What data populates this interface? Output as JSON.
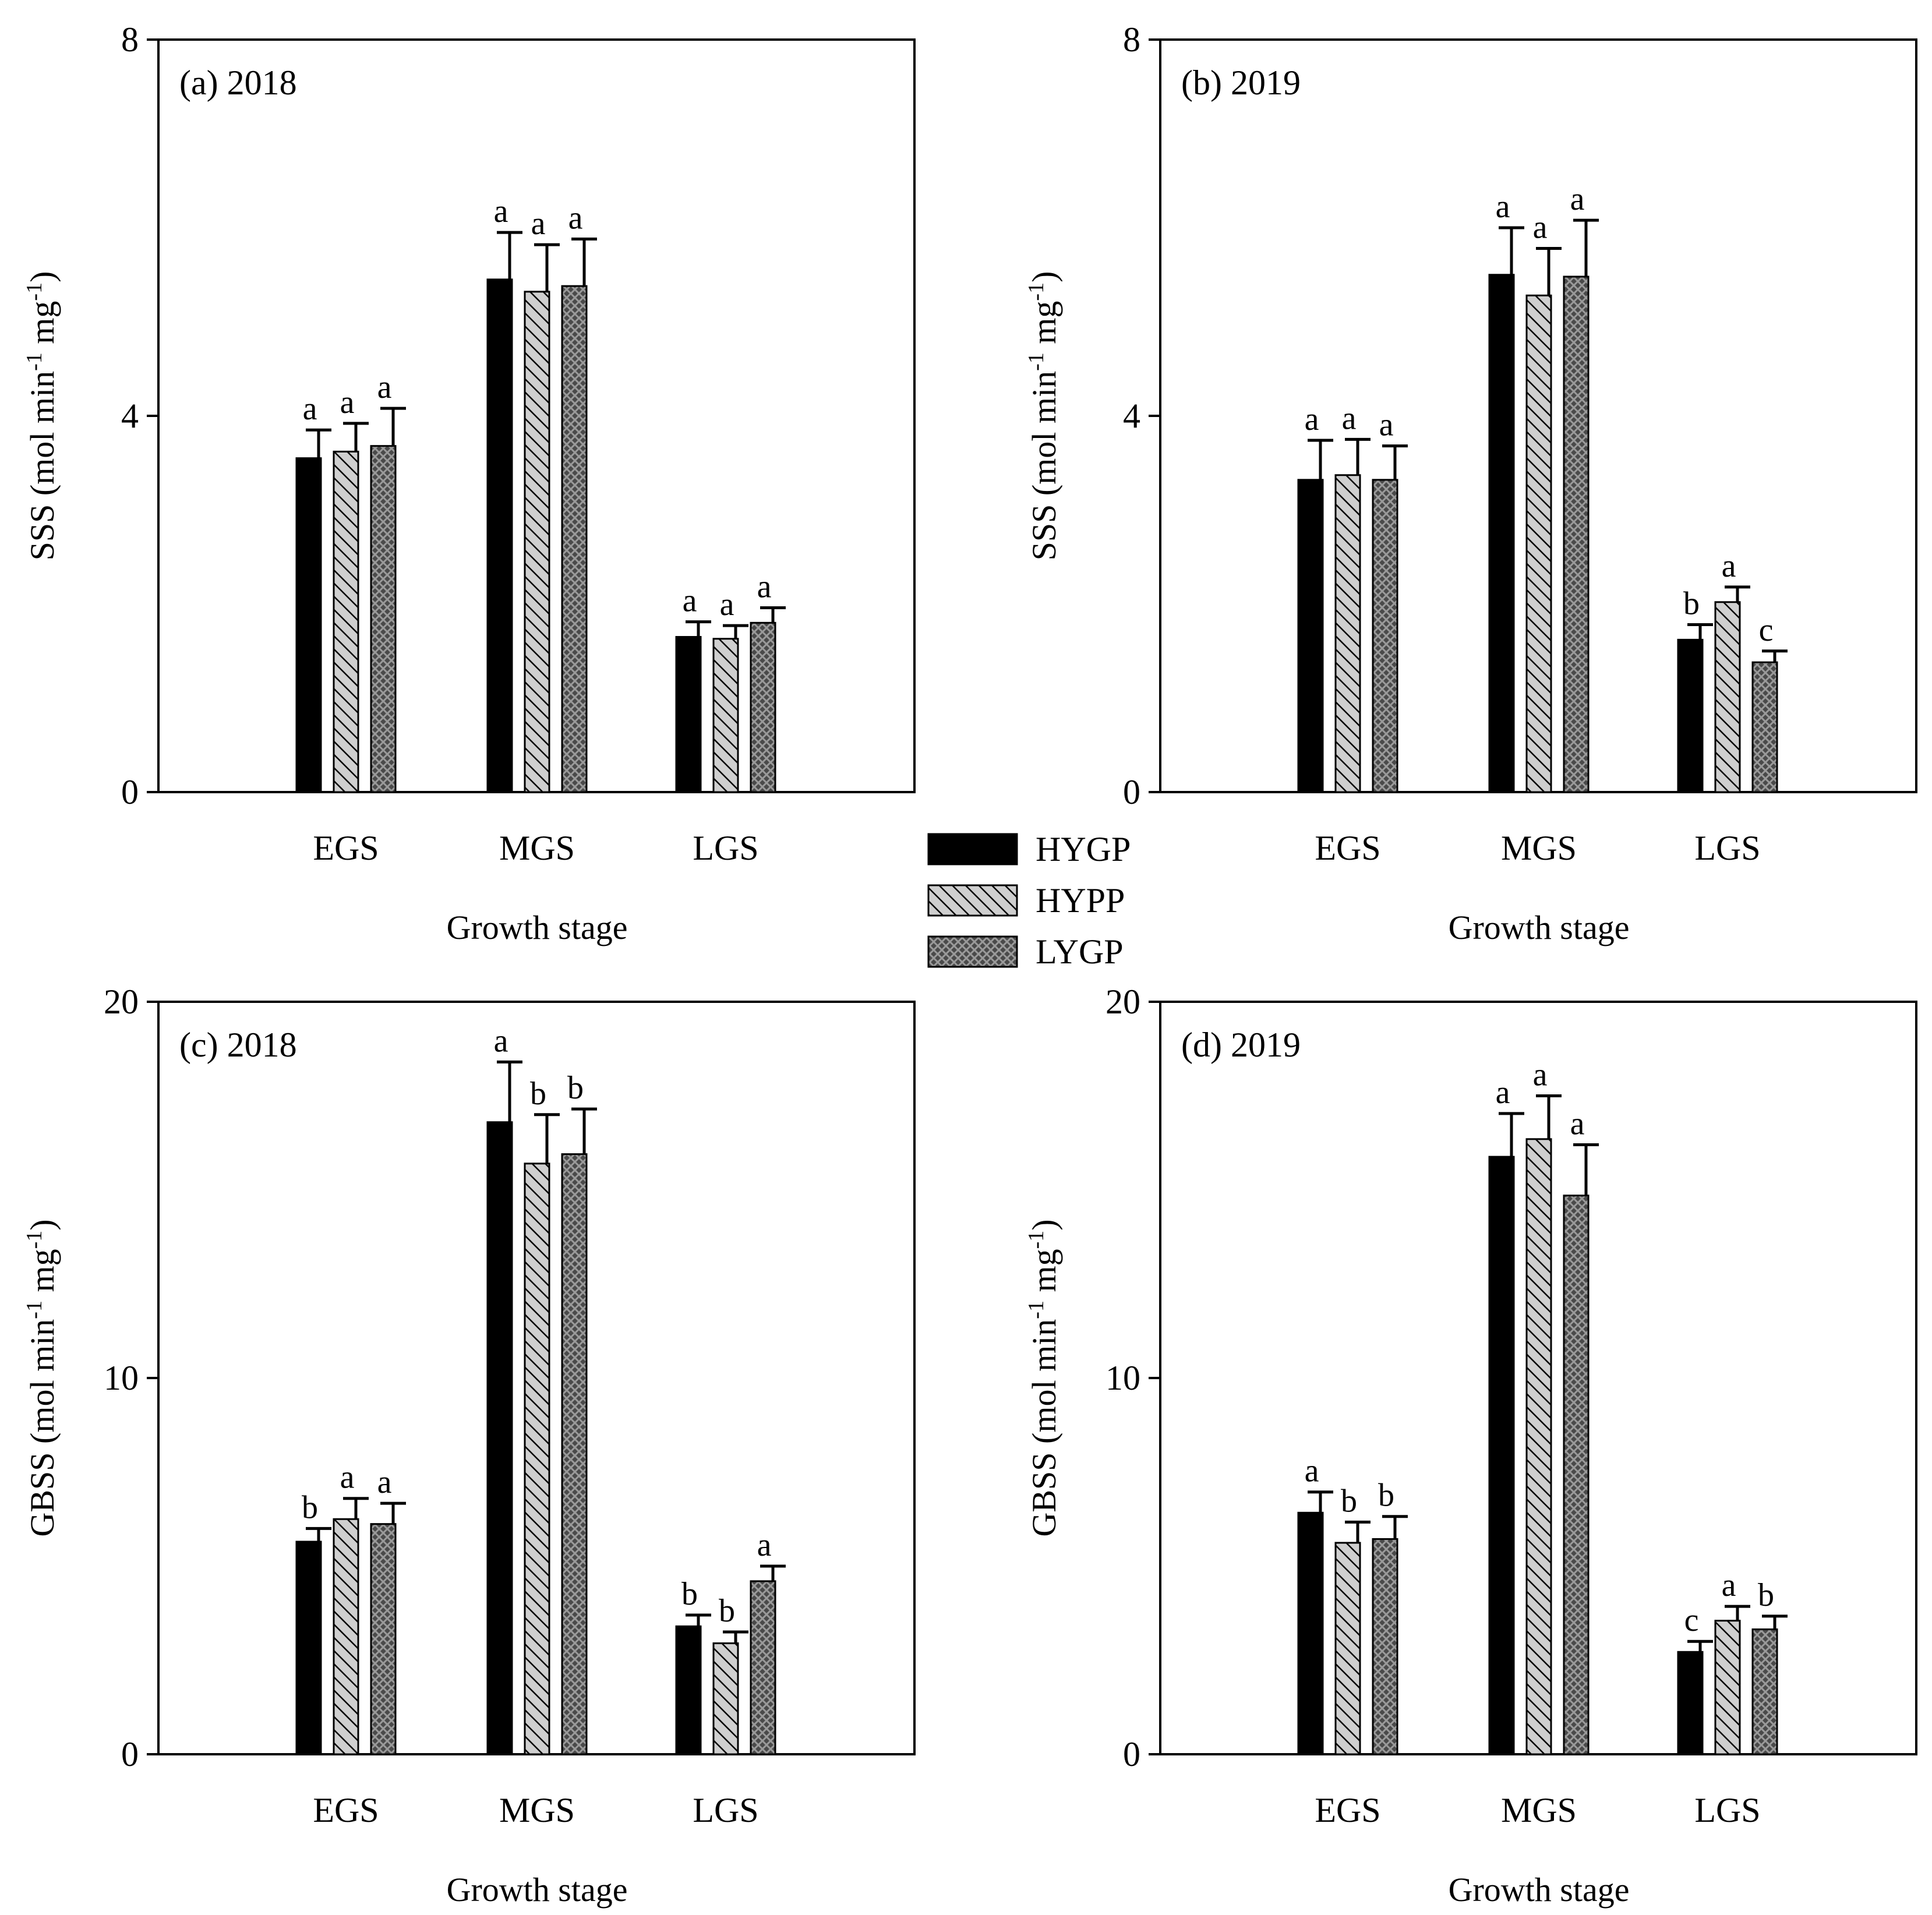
{
  "colors": {
    "HYGP": "#000000",
    "HYPP": "#bdbdbd",
    "LYGP": "#5a5a5a"
  },
  "legend": [
    {
      "name": "HYGP",
      "pattern": "solid-black"
    },
    {
      "name": "HYPP",
      "pattern": "diagonal-hatch"
    },
    {
      "name": "LYGP",
      "pattern": "crosshatch"
    }
  ],
  "chart_data": [
    {
      "type": "bar",
      "panel": "a",
      "title": "(a)  2018",
      "xlabel": "Growth stage",
      "ylabel": "SSS (mol min",
      "ylabel_unit_sup": "-1",
      "ylabel_unit_mid": " mg",
      "ylabel_unit_sup2": "-1",
      "ylabel_end": ")",
      "ylim": [
        0,
        8
      ],
      "yticks": [
        0,
        4,
        8
      ],
      "categories": [
        "EGS",
        "MGS",
        "LGS"
      ],
      "series": [
        {
          "name": "HYGP",
          "values": [
            3.55,
            5.45,
            1.65
          ],
          "errors": [
            0.3,
            0.5,
            0.16
          ],
          "letters": [
            "a",
            "a",
            "a"
          ]
        },
        {
          "name": "HYPP",
          "values": [
            3.62,
            5.32,
            1.63
          ],
          "errors": [
            0.3,
            0.5,
            0.14
          ],
          "letters": [
            "a",
            "a",
            "a"
          ]
        },
        {
          "name": "LYGP",
          "values": [
            3.68,
            5.38,
            1.8
          ],
          "errors": [
            0.4,
            0.5,
            0.16
          ],
          "letters": [
            "a",
            "a",
            "a"
          ]
        }
      ]
    },
    {
      "type": "bar",
      "panel": "b",
      "title": "(b)  2019",
      "xlabel": "Growth stage",
      "ylabel": "SSS (mol min",
      "ylabel_unit_sup": "-1",
      "ylabel_unit_mid": " mg",
      "ylabel_unit_sup2": "-1",
      "ylabel_end": ")",
      "ylim": [
        0,
        8
      ],
      "yticks": [
        0,
        4,
        8
      ],
      "categories": [
        "EGS",
        "MGS",
        "LGS"
      ],
      "series": [
        {
          "name": "HYGP",
          "values": [
            3.32,
            5.5,
            1.62
          ],
          "errors": [
            0.42,
            0.5,
            0.16
          ],
          "letters": [
            "a",
            "a",
            "b"
          ]
        },
        {
          "name": "HYPP",
          "values": [
            3.37,
            5.28,
            2.02
          ],
          "errors": [
            0.38,
            0.5,
            0.16
          ],
          "letters": [
            "a",
            "a",
            "a"
          ]
        },
        {
          "name": "LYGP",
          "values": [
            3.32,
            5.48,
            1.38
          ],
          "errors": [
            0.36,
            0.6,
            0.12
          ],
          "letters": [
            "a",
            "a",
            "c"
          ]
        }
      ]
    },
    {
      "type": "bar",
      "panel": "c",
      "title": "(c)  2018",
      "xlabel": "Growth stage",
      "ylabel": "GBSS (mol min",
      "ylabel_unit_sup": "-1",
      "ylabel_unit_mid": " mg",
      "ylabel_unit_sup2": "-1",
      "ylabel_end": ")",
      "ylim": [
        0,
        20
      ],
      "yticks": [
        0,
        10,
        20
      ],
      "categories": [
        "EGS",
        "MGS",
        "LGS"
      ],
      "series": [
        {
          "name": "HYGP",
          "values": [
            5.65,
            16.8,
            3.4
          ],
          "errors": [
            0.35,
            1.6,
            0.3
          ],
          "letters": [
            "b",
            "a",
            "b"
          ]
        },
        {
          "name": "HYPP",
          "values": [
            6.25,
            15.7,
            2.95
          ],
          "errors": [
            0.55,
            1.3,
            0.3
          ],
          "letters": [
            "a",
            "b",
            "b"
          ]
        },
        {
          "name": "LYGP",
          "values": [
            6.12,
            15.95,
            4.6
          ],
          "errors": [
            0.55,
            1.2,
            0.4
          ],
          "letters": [
            "a",
            "b",
            "a"
          ]
        }
      ]
    },
    {
      "type": "bar",
      "panel": "d",
      "title": "(d)  2019",
      "xlabel": "Growth stage",
      "ylabel": "GBSS (mol min",
      "ylabel_unit_sup": "-1",
      "ylabel_unit_mid": " mg",
      "ylabel_unit_sup2": "-1",
      "ylabel_end": ")",
      "ylim": [
        0,
        20
      ],
      "yticks": [
        0,
        10,
        20
      ],
      "categories": [
        "EGS",
        "MGS",
        "LGS"
      ],
      "series": [
        {
          "name": "HYGP",
          "values": [
            6.42,
            15.88,
            2.72
          ],
          "errors": [
            0.55,
            1.15,
            0.28
          ],
          "letters": [
            "a",
            "a",
            "c"
          ]
        },
        {
          "name": "HYPP",
          "values": [
            5.62,
            16.35,
            3.55
          ],
          "errors": [
            0.55,
            1.15,
            0.38
          ],
          "letters": [
            "b",
            "a",
            "a"
          ]
        },
        {
          "name": "LYGP",
          "values": [
            5.72,
            14.85,
            3.32
          ],
          "errors": [
            0.6,
            1.35,
            0.35
          ],
          "letters": [
            "b",
            "a",
            "b"
          ]
        }
      ]
    }
  ]
}
